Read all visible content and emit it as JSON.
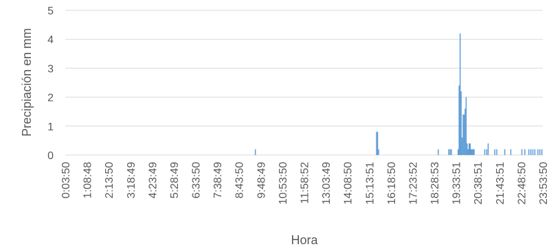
{
  "chart_data": {
    "type": "bar",
    "title": "",
    "xlabel": "Hora",
    "ylabel": "Precipiación en mm",
    "ylim": [
      0,
      5
    ],
    "yticks": [
      0,
      1,
      2,
      3,
      4,
      5
    ],
    "grid": true,
    "legend": "none",
    "xtick_labels": [
      "0:03:50",
      "1:08:48",
      "2:13:50",
      "3:18:49",
      "4:23:49",
      "5:28:49",
      "6:33:50",
      "7:38:49",
      "8:43:50",
      "9:48:49",
      "10:53:50",
      "11:58:52",
      "13:03:49",
      "14:08:50",
      "15:13:51",
      "16:18:50",
      "17:23:52",
      "18:28:53",
      "19:33:51",
      "20:38:51",
      "21:43:51",
      "22:48:50",
      "23:53:50"
    ],
    "series": [
      {
        "x_hours": [
          9.55,
          15.6,
          15.65,
          15.7,
          18.68,
          19.2,
          19.27,
          19.33,
          19.67,
          19.72,
          19.77,
          19.82,
          19.87,
          19.92,
          19.97,
          20.02,
          20.07,
          20.12,
          20.17,
          20.22,
          20.27,
          20.32,
          20.37,
          20.42,
          20.47,
          21.0,
          21.1,
          21.17,
          21.5,
          21.6,
          22.0,
          22.3,
          22.85,
          23.0,
          23.2,
          23.3,
          23.4,
          23.5,
          23.65,
          23.75,
          23.85
        ],
        "values": [
          0.2,
          0.8,
          0.8,
          0.2,
          0.2,
          0.2,
          0.2,
          0.2,
          0.2,
          2.4,
          4.2,
          2.2,
          0.6,
          1.4,
          1.4,
          1.6,
          2.0,
          0.4,
          0.2,
          0.4,
          0.4,
          0.2,
          0.2,
          0.2,
          0.2,
          0.2,
          0.2,
          0.4,
          0.2,
          0.2,
          0.2,
          0.2,
          0.2,
          0.2,
          0.2,
          0.2,
          0.2,
          0.2,
          0.2,
          0.2,
          0.2
        ]
      }
    ],
    "colors": {
      "bar": "#5b9bd5",
      "grid": "#d9d9d9",
      "text": "#595959"
    }
  }
}
